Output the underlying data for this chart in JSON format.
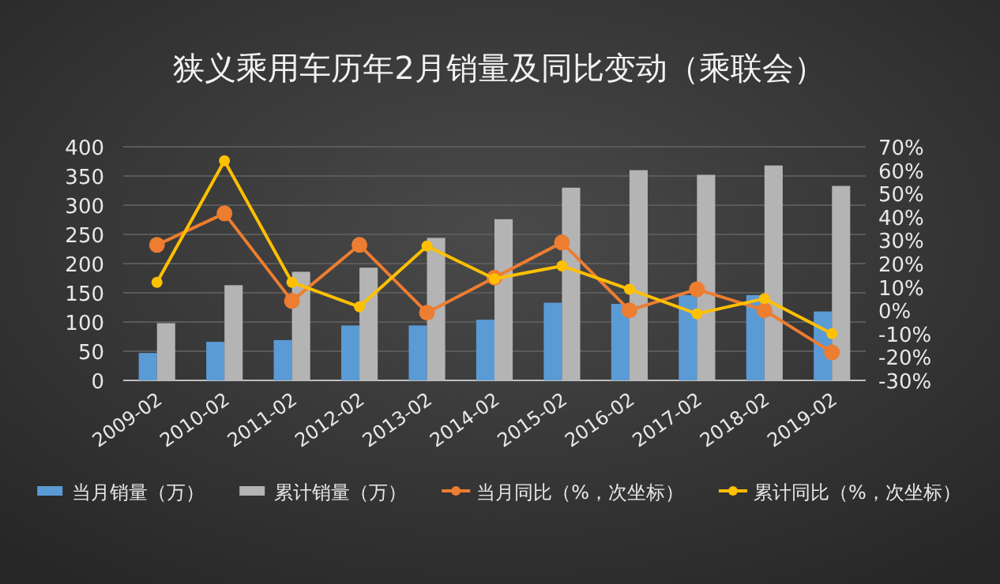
{
  "chart_data": {
    "type": "bar",
    "title": "狭义乘用车历年2月销量及同比变动（乘联会）",
    "categories": [
      "2009-02",
      "2010-02",
      "2011-02",
      "2012-02",
      "2013-02",
      "2014-02",
      "2015-02",
      "2016-02",
      "2017-02",
      "2018-02",
      "2019-02"
    ],
    "series": [
      {
        "name": "当月销量（万）",
        "color": "#5b9bd5",
        "values": [
          47,
          66,
          69,
          94,
          94,
          104,
          133,
          131,
          146,
          146,
          118
        ]
      },
      {
        "name": "累计销量（万）",
        "color": "#b4b4b4",
        "values": [
          98,
          163,
          186,
          193,
          244,
          276,
          330,
          360,
          352,
          368,
          333
        ]
      },
      {
        "name": "当月同比（%，次坐标）",
        "type": "line",
        "axis": "y2",
        "color": "#ed7d31",
        "marker": "circle",
        "values": [
          28,
          41.5,
          4,
          28,
          -1,
          14,
          29,
          0,
          9,
          0,
          -18
        ]
      },
      {
        "name": "累计同比（%，次坐标）",
        "type": "line",
        "axis": "y2",
        "color": "#ffc000",
        "marker": "circle",
        "values": [
          12,
          64,
          12,
          1.5,
          27.5,
          13.5,
          19,
          9,
          -1.5,
          5,
          -10
        ]
      }
    ],
    "ylim": [
      0,
      400
    ],
    "yticks": [
      0,
      50,
      100,
      150,
      200,
      250,
      300,
      350,
      400
    ],
    "y2lim": [
      -30,
      70
    ],
    "y2ticks": [
      {
        "value": -30,
        "label": "-30%"
      },
      {
        "value": -20,
        "label": "-20%"
      },
      {
        "value": -10,
        "label": "-10%"
      },
      {
        "value": 0,
        "label": "0%"
      },
      {
        "value": 10,
        "label": "10%"
      },
      {
        "value": 20,
        "label": "20%"
      },
      {
        "value": 30,
        "label": "30%"
      },
      {
        "value": 40,
        "label": "40%"
      },
      {
        "value": 50,
        "label": "50%"
      },
      {
        "value": 60,
        "label": "60%"
      },
      {
        "value": 70,
        "label": "70%"
      }
    ],
    "grid": "y",
    "legend": "bottom"
  }
}
